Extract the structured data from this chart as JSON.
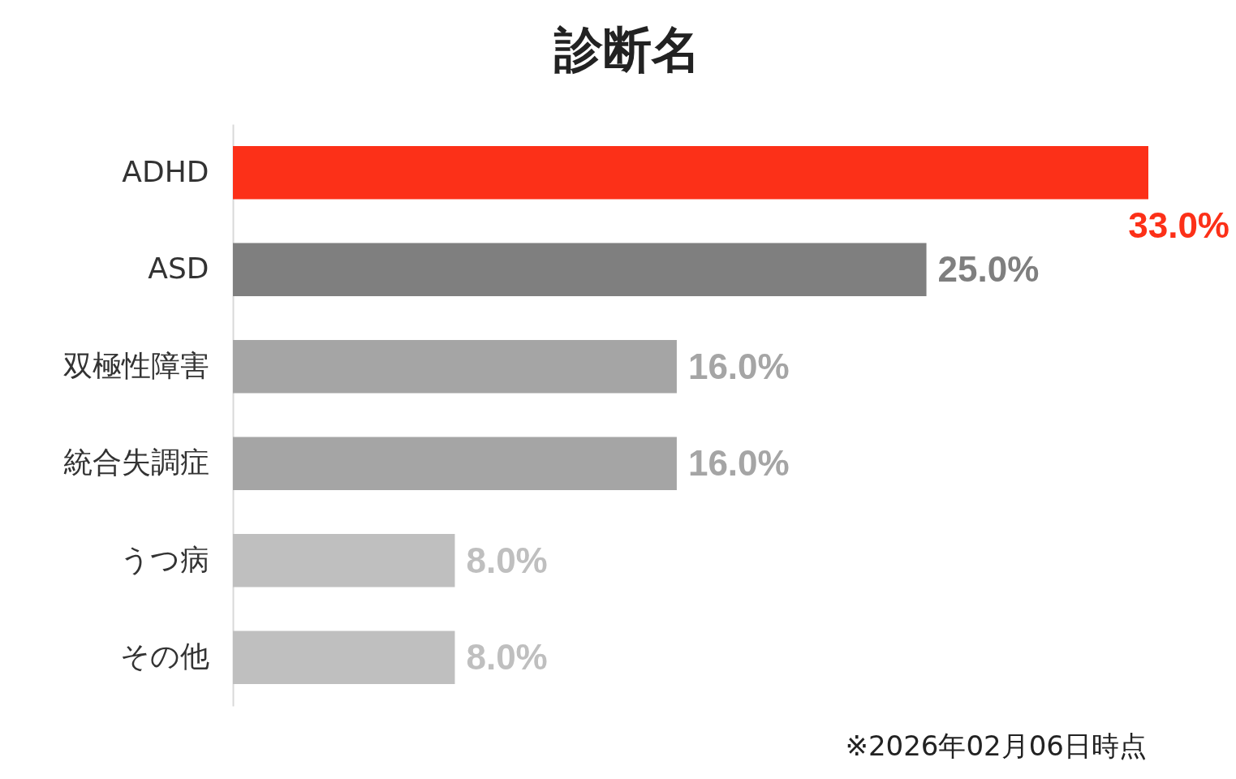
{
  "chart_data": {
    "type": "bar",
    "orientation": "horizontal",
    "title": "診断名",
    "categories": [
      "ADHD",
      "ASD",
      "双極性障害",
      "統合失調症",
      "うつ病",
      "その他"
    ],
    "values": [
      33.0,
      25.0,
      16.0,
      16.0,
      8.0,
      8.0
    ],
    "colors": [
      "#fc3018",
      "#7f7f7f",
      "#a5a5a5",
      "#a5a5a5",
      "#bfbfbf",
      "#bfbfbf"
    ],
    "value_labels": [
      "33.0%",
      "25.0%",
      "16.0%",
      "16.0%",
      "8.0%",
      "8.0%"
    ],
    "annotations": [
      "※2026年02月06日時点"
    ]
  }
}
